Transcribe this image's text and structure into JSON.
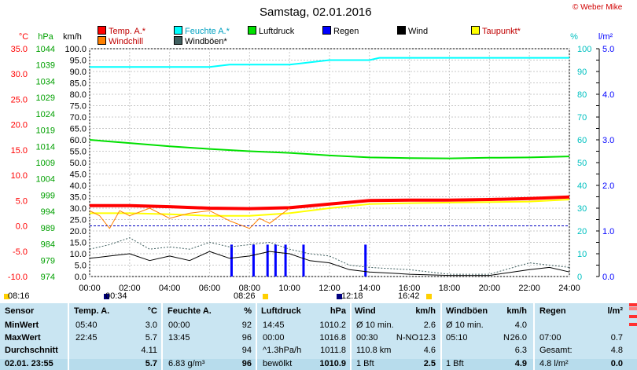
{
  "title": "Samstag, 02.01.2016",
  "credit": "© Weber Mike",
  "legend": [
    {
      "label": "Temp. A.*",
      "color": "#ff0000"
    },
    {
      "label": "Feuchte A.*",
      "color": "#00ffff"
    },
    {
      "label": "Luftdruck",
      "color": "#00e000"
    },
    {
      "label": "Regen",
      "color": "#0000ff"
    },
    {
      "label": "Wind",
      "color": "#000000"
    },
    {
      "label": "Taupunkt*",
      "color": "#ffff00"
    },
    {
      "label": "Windchill",
      "color": "#ff8000"
    },
    {
      "label": "Windböen*",
      "color": "#406060"
    }
  ],
  "axes": {
    "temp_unit": "°C",
    "press_unit": "hPa",
    "wind_unit": "km/h",
    "hum_unit": "%",
    "rain_unit": "l/m²",
    "temp_ticks": [
      "35.0",
      "30.0",
      "25.0",
      "20.0",
      "15.0",
      "10.0",
      "5.0",
      "0.0",
      "-5.0",
      "-10.0"
    ],
    "press_ticks": [
      "1044",
      "1039",
      "1034",
      "1029",
      "1024",
      "1019",
      "1014",
      "1009",
      "1004",
      "999",
      "994",
      "989",
      "984",
      "979",
      "974"
    ],
    "wind_ticks": [
      "100.0",
      "95.0",
      "90.0",
      "85.0",
      "80.0",
      "75.0",
      "70.0",
      "65.0",
      "60.0",
      "55.0",
      "50.0",
      "45.0",
      "40.0",
      "35.0",
      "30.0",
      "25.0",
      "20.0",
      "15.0",
      "10.0",
      "5.0",
      "0.0"
    ],
    "hum_ticks": [
      "100",
      "90",
      "80",
      "70",
      "60",
      "50",
      "40",
      "30",
      "20",
      "10",
      "0"
    ],
    "rain_ticks": [
      "5.0",
      "4.0",
      "3.0",
      "2.0",
      "1.0",
      "0.0"
    ],
    "x_ticks": [
      "00:00",
      "02:00",
      "04:00",
      "06:00",
      "08:00",
      "10:00",
      "12:00",
      "14:00",
      "16:00",
      "18:00",
      "20:00",
      "22:00",
      "24:00"
    ]
  },
  "events": {
    "sunrise": "08:16",
    "moonrise": "00:34",
    "noon": "08:26",
    "moon2": "12:18",
    "sunset": "16:42"
  },
  "chart_data": {
    "type": "line",
    "title": "Samstag, 02.01.2016",
    "x_range": [
      0,
      24
    ],
    "series": [
      {
        "name": "Temp. A.*",
        "axis": "°C",
        "color": "#ff0000",
        "points": [
          [
            0,
            4.0
          ],
          [
            2,
            4.0
          ],
          [
            4,
            3.8
          ],
          [
            6,
            3.5
          ],
          [
            8,
            3.4
          ],
          [
            10,
            3.6
          ],
          [
            12,
            4.3
          ],
          [
            14,
            5.0
          ],
          [
            16,
            5.1
          ],
          [
            18,
            5.1
          ],
          [
            20,
            5.2
          ],
          [
            22,
            5.4
          ],
          [
            24,
            5.7
          ]
        ]
      },
      {
        "name": "Feuchte A.*",
        "axis": "%",
        "color": "#00ffff",
        "points": [
          [
            0,
            92
          ],
          [
            2,
            92
          ],
          [
            4,
            92
          ],
          [
            6,
            92
          ],
          [
            7,
            93
          ],
          [
            10,
            93
          ],
          [
            11,
            94
          ],
          [
            12,
            95
          ],
          [
            14,
            95
          ],
          [
            14.5,
            96
          ],
          [
            24,
            96
          ]
        ]
      },
      {
        "name": "Luftdruck",
        "axis": "hPa",
        "color": "#00e000",
        "points": [
          [
            0,
            1016.0
          ],
          [
            1,
            1015.5
          ],
          [
            2,
            1015.0
          ],
          [
            4,
            1014.0
          ],
          [
            6,
            1013.2
          ],
          [
            8,
            1012.5
          ],
          [
            10,
            1012.0
          ],
          [
            12,
            1011.2
          ],
          [
            14,
            1010.6
          ],
          [
            16,
            1010.4
          ],
          [
            18,
            1010.3
          ],
          [
            20,
            1010.5
          ],
          [
            22,
            1010.6
          ],
          [
            24,
            1010.9
          ]
        ]
      },
      {
        "name": "Taupunkt*",
        "axis": "°C",
        "color": "#ffff00",
        "points": [
          [
            0,
            2.5
          ],
          [
            2,
            2.5
          ],
          [
            4,
            2.3
          ],
          [
            6,
            2.0
          ],
          [
            8,
            2.0
          ],
          [
            10,
            2.5
          ],
          [
            12,
            3.5
          ],
          [
            14,
            4.3
          ],
          [
            16,
            4.5
          ],
          [
            18,
            4.6
          ],
          [
            20,
            4.7
          ],
          [
            22,
            4.8
          ],
          [
            24,
            5.2
          ]
        ]
      },
      {
        "name": "Windchill",
        "axis": "°C",
        "color": "#ff8000",
        "points": [
          [
            0,
            3.0
          ],
          [
            0.5,
            2.0
          ],
          [
            1,
            -0.5
          ],
          [
            1.5,
            3.0
          ],
          [
            2,
            2.0
          ],
          [
            3,
            3.5
          ],
          [
            4,
            1.5
          ],
          [
            5,
            2.5
          ],
          [
            6,
            3.0
          ],
          [
            7,
            1.0
          ],
          [
            8,
            -0.5
          ],
          [
            8.5,
            1.5
          ],
          [
            9,
            0.5
          ],
          [
            9.5,
            2.0
          ],
          [
            10,
            3.5
          ]
        ]
      },
      {
        "name": "Wind",
        "axis": "km/h",
        "color": "#000000",
        "points": [
          [
            0,
            8
          ],
          [
            1,
            9
          ],
          [
            2,
            10
          ],
          [
            3,
            7
          ],
          [
            4,
            9
          ],
          [
            5,
            7
          ],
          [
            6,
            11
          ],
          [
            7,
            8
          ],
          [
            8,
            9
          ],
          [
            9,
            11
          ],
          [
            10,
            10
          ],
          [
            11,
            7
          ],
          [
            12,
            6
          ],
          [
            13,
            3
          ],
          [
            14,
            2
          ],
          [
            16,
            1
          ],
          [
            18,
            0.5
          ],
          [
            20,
            0.5
          ],
          [
            22,
            3
          ],
          [
            23,
            4
          ],
          [
            24,
            2
          ]
        ]
      },
      {
        "name": "Windböen*",
        "axis": "km/h",
        "color": "#406060",
        "points": [
          [
            0,
            12
          ],
          [
            1,
            14
          ],
          [
            2,
            17
          ],
          [
            3,
            12
          ],
          [
            4,
            13
          ],
          [
            5,
            12
          ],
          [
            6,
            15
          ],
          [
            7,
            13
          ],
          [
            8,
            14
          ],
          [
            9,
            15
          ],
          [
            10,
            12
          ],
          [
            11,
            10
          ],
          [
            12,
            9
          ],
          [
            13,
            5
          ],
          [
            14,
            4
          ],
          [
            16,
            3
          ],
          [
            18,
            1
          ],
          [
            20,
            1
          ],
          [
            22,
            6
          ],
          [
            24,
            4
          ]
        ]
      }
    ],
    "rain_bars": {
      "axis": "l/m²",
      "times": [
        7.1,
        8.2,
        8.9,
        9.3,
        9.8,
        10.7,
        13.8
      ],
      "values": [
        0.7,
        0.7,
        0.7,
        0.7,
        0.7,
        0.7,
        0.7
      ]
    },
    "taupunkt_zero_ref": "0.0"
  },
  "table": {
    "headers": [
      "Sensor",
      "Temp. A.",
      "°C",
      "Feuchte A.",
      "%",
      "Luftdruck",
      "hPa",
      "Wind",
      "km/h",
      "Windböen",
      "km/h",
      "Regen",
      "l/m²"
    ],
    "rows": [
      {
        "label": "MinWert",
        "t_time": "05:40",
        "t_val": "3.0",
        "h_time": "00:00",
        "h_val": "92",
        "p_time": "14:45",
        "p_val": "1010.2",
        "w_desc": "Ø 10 min.",
        "w_val": "2.6",
        "g_desc": "Ø 10 min.",
        "g_val": "4.0",
        "r_desc": "",
        "r_val": ""
      },
      {
        "label": "MaxWert",
        "t_time": "22:45",
        "t_val": "5.7",
        "h_time": "13:45",
        "h_val": "96",
        "p_time": "00:00",
        "p_val": "1016.8",
        "w_desc": "00:30",
        "w_dir": "N-NO",
        "w_val": "12.3",
        "g_desc": "05:10",
        "g_dir": "N",
        "g_val": "26.0",
        "r_desc": "07:00",
        "r_val": "0.7"
      },
      {
        "label": "Durchschnitt",
        "t_time": "",
        "t_val": "4.11",
        "h_time": "",
        "h_val": "94",
        "p_time": "^1.3hPa/h",
        "p_val": "1011.8",
        "w_desc": "110.8 km",
        "w_val": "4.6",
        "g_desc": "",
        "g_val": "6.3",
        "r_desc": "Gesamt:",
        "r_val": "4.8"
      },
      {
        "label": "02.01. 23:55",
        "t_time": "",
        "t_val": "5.7",
        "h_time": "6.83 g/m³",
        "h_val": "96",
        "p_time": "bewölkt",
        "p_val": "1010.9",
        "w_desc": "1 Bft",
        "w_val": "2.5",
        "g_desc": "1 Bft",
        "g_val": "4.9",
        "r_desc": "4.8 l/m²",
        "r_val": "0.0"
      }
    ]
  }
}
